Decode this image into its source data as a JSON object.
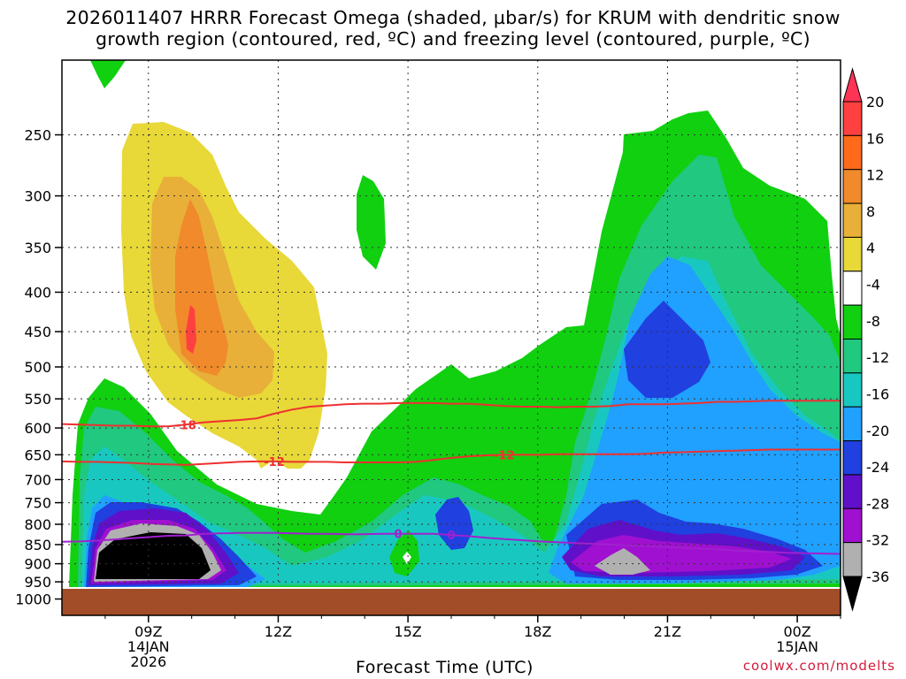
{
  "chart_data": {
    "type": "heatmap",
    "title_line1": "2026011407 HRRR Forecast Omega (shaded, µbar/s) for KRUM with dendritic snow",
    "title_line2": "growth region (contoured, red, ºC) and freezing level (contoured, purple, ºC)",
    "xlabel": "Forecast Time (UTC)",
    "ylabel": "",
    "y_axis": {
      "scale": "pressure (hPa), inverted",
      "range": [
        1050,
        200
      ],
      "ticks": [
        "250",
        "300",
        "350",
        "400",
        "450",
        "500",
        "550",
        "600",
        "650",
        "700",
        "750",
        "800",
        "850",
        "900",
        "950",
        "1000"
      ]
    },
    "x_axis": {
      "range_hours": [
        7,
        25
      ],
      "ticks": [
        {
          "label": "09Z",
          "sub1": "14JAN",
          "sub2": "2026"
        },
        {
          "label": "12Z",
          "sub1": "",
          "sub2": ""
        },
        {
          "label": "15Z",
          "sub1": "",
          "sub2": ""
        },
        {
          "label": "18Z",
          "sub1": "",
          "sub2": ""
        },
        {
          "label": "21Z",
          "sub1": "",
          "sub2": ""
        },
        {
          "label": "00Z",
          "sub1": "15JAN",
          "sub2": ""
        }
      ]
    },
    "colorbar": {
      "labels": [
        "20",
        "16",
        "12",
        "8",
        "4",
        "-4",
        "-8",
        "-12",
        "-16",
        "-20",
        "-24",
        "-28",
        "-32",
        "-36"
      ],
      "colors": [
        "#ff3355",
        "#ff4040",
        "#ff6a1a",
        "#f08a2a",
        "#e8b038",
        "#e8d838",
        "#ffffff",
        "#10d010",
        "#20c880",
        "#18c8c0",
        "#20a0ff",
        "#2040e0",
        "#6010c8",
        "#a010d0",
        "#b0b0b0",
        "#000000"
      ]
    },
    "contours": [
      {
        "name": "dendritic growth -18C",
        "color": "#ee3030",
        "label": "-18",
        "values_hpa": [
          593,
          594,
          595,
          596,
          596,
          597,
          597,
          594,
          590,
          588,
          586,
          583,
          575,
          568,
          563,
          561,
          559,
          558,
          558,
          557,
          557,
          557,
          558,
          558,
          560,
          562,
          563,
          563,
          564,
          563,
          563,
          562,
          559,
          559,
          559,
          558,
          557,
          555,
          555,
          554,
          553,
          553,
          553,
          553,
          553
        ]
      },
      {
        "name": "dendritic growth -12C",
        "color": "#ee3030",
        "label": "-12",
        "values_hpa": [
          663,
          664,
          664,
          665,
          666,
          668,
          669,
          670,
          668,
          666,
          664,
          663,
          663,
          664,
          664,
          664,
          665,
          665,
          665,
          665,
          664,
          660,
          656,
          653,
          651,
          650,
          650,
          650,
          649,
          649,
          649,
          649,
          649,
          648,
          646,
          645,
          644,
          643,
          642,
          641,
          640,
          640,
          640,
          640,
          640
        ]
      },
      {
        "name": "freezing level 0C",
        "color": "#a020d0",
        "label": "0",
        "values_hpa": [
          843,
          842,
          840,
          837,
          834,
          831,
          828,
          827,
          823,
          822,
          821,
          821,
          821,
          822,
          823,
          823,
          824,
          824,
          823,
          823,
          823,
          823,
          826,
          829,
          833,
          836,
          839,
          842,
          844,
          846,
          848,
          850,
          852,
          854,
          856,
          858,
          860,
          862,
          865,
          867,
          869,
          871,
          872,
          873,
          874
        ]
      }
    ]
  },
  "credit": "coolwx.com/modelts"
}
